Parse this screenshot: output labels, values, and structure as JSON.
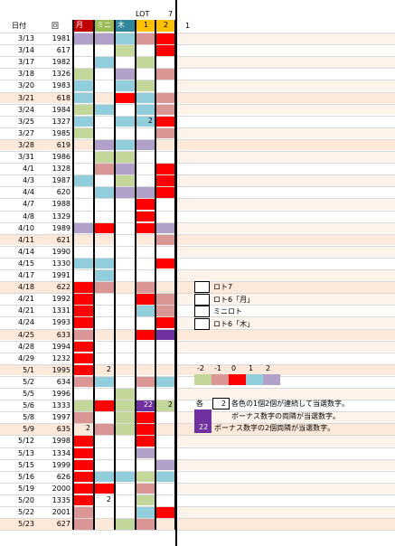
{
  "header": {
    "date_label": "日付",
    "round_label": "回",
    "lot_label": "LOT",
    "seven_label": "7",
    "col_labels": [
      "月",
      "ミニ",
      "木",
      "1",
      "2",
      "1"
    ]
  },
  "colors": {
    "-2": "#c4d79b",
    "-1": "#da9694",
    "0": "#ff0000",
    "1": "#92cddc",
    "2": "#b1a0c7",
    "P": "#7030a0",
    "B": "#fde9d9",
    "E": "#ffffff",
    "hdr_mon": "#c00000",
    "hdr_mini": "#9bbb59",
    "hdr_thu": "#31869b",
    "hdr_1": "#ffc000",
    "hdr_2": "#ffc000"
  },
  "rows": [
    {
      "date": "3/13",
      "round": "1981",
      "cells": [
        "2",
        "2",
        "1",
        "-1",
        "0"
      ],
      "nums": [
        "",
        "",
        "",
        "",
        ""
      ]
    },
    {
      "date": "3/14",
      "round": "617",
      "cells": [
        "E",
        "E",
        "-2",
        "E",
        "0"
      ],
      "nums": [
        "",
        "",
        "",
        "",
        ""
      ]
    },
    {
      "date": "3/17",
      "round": "1982",
      "cells": [
        "E",
        "1",
        "E",
        "-2",
        "E"
      ],
      "nums": [
        "",
        "",
        "",
        "",
        ""
      ]
    },
    {
      "date": "3/18",
      "round": "1326",
      "cells": [
        "-2",
        "E",
        "2",
        "E",
        "-1"
      ],
      "nums": [
        "",
        "",
        "",
        "",
        ""
      ]
    },
    {
      "date": "3/20",
      "round": "1983",
      "cells": [
        "1",
        "E",
        "1",
        "-2",
        "E"
      ],
      "nums": [
        "",
        "",
        "",
        "",
        ""
      ]
    },
    {
      "date": "3/21",
      "round": "618",
      "cells": [
        "1",
        "B",
        "0",
        "1",
        "-1"
      ],
      "nums": [
        "",
        "",
        "",
        "",
        ""
      ]
    },
    {
      "date": "3/24",
      "round": "1984",
      "cells": [
        "-2",
        "1",
        "E",
        "1",
        "-1"
      ],
      "nums": [
        "",
        "",
        "",
        "",
        ""
      ]
    },
    {
      "date": "3/25",
      "round": "1327",
      "cells": [
        "1",
        "E",
        "1",
        "1",
        "0"
      ],
      "nums": [
        "",
        "",
        "",
        "2",
        ""
      ]
    },
    {
      "date": "3/27",
      "round": "1985",
      "cells": [
        "-2",
        "E",
        "E",
        "E",
        "-1"
      ],
      "nums": [
        "",
        "",
        "",
        "",
        ""
      ]
    },
    {
      "date": "3/28",
      "round": "619",
      "cells": [
        "B",
        "2",
        "1",
        "2",
        "B"
      ],
      "nums": [
        "",
        "",
        "",
        "",
        ""
      ]
    },
    {
      "date": "3/31",
      "round": "1986",
      "cells": [
        "E",
        "-2",
        "-2",
        "E",
        "E"
      ],
      "nums": [
        "",
        "",
        "",
        "",
        ""
      ]
    },
    {
      "date": "4/1",
      "round": "1328",
      "cells": [
        "E",
        "-1",
        "2",
        "E",
        "0"
      ],
      "nums": [
        "",
        "",
        "",
        "",
        ""
      ]
    },
    {
      "date": "4/3",
      "round": "1987",
      "cells": [
        "1",
        "E",
        "-2",
        "E",
        "0"
      ],
      "nums": [
        "",
        "",
        "",
        "",
        ""
      ]
    },
    {
      "date": "4/4",
      "round": "620",
      "cells": [
        "E",
        "1",
        "2",
        "2",
        "0"
      ],
      "nums": [
        "",
        "",
        "",
        "",
        ""
      ]
    },
    {
      "date": "4/7",
      "round": "1988",
      "cells": [
        "E",
        "E",
        "E",
        "0",
        "E"
      ],
      "nums": [
        "",
        "",
        "",
        "",
        ""
      ]
    },
    {
      "date": "4/8",
      "round": "1329",
      "cells": [
        "E",
        "E",
        "E",
        "0",
        "E"
      ],
      "nums": [
        "",
        "",
        "",
        "",
        ""
      ]
    },
    {
      "date": "4/10",
      "round": "1989",
      "cells": [
        "2",
        "0",
        "E",
        "0",
        "2"
      ],
      "nums": [
        "",
        "",
        "",
        "",
        ""
      ]
    },
    {
      "date": "4/11",
      "round": "621",
      "cells": [
        "B",
        "B",
        "E",
        "B",
        "-1"
      ],
      "nums": [
        "",
        "",
        "",
        "",
        ""
      ]
    },
    {
      "date": "4/14",
      "round": "1990",
      "cells": [
        "E",
        "E",
        "E",
        "E",
        "E"
      ],
      "nums": [
        "",
        "",
        "",
        "",
        ""
      ]
    },
    {
      "date": "4/15",
      "round": "1330",
      "cells": [
        "1",
        "1",
        "E",
        "E",
        "0"
      ],
      "nums": [
        "",
        "",
        "",
        "",
        ""
      ]
    },
    {
      "date": "4/17",
      "round": "1991",
      "cells": [
        "E",
        "1",
        "E",
        "E",
        "E"
      ],
      "nums": [
        "",
        "",
        "",
        "",
        ""
      ]
    },
    {
      "date": "4/18",
      "round": "622",
      "cells": [
        "0",
        "-1",
        "B",
        "-1",
        "B"
      ],
      "nums": [
        "",
        "",
        "",
        "",
        ""
      ]
    },
    {
      "date": "4/21",
      "round": "1992",
      "cells": [
        "0",
        "E",
        "E",
        "0",
        "-1"
      ],
      "nums": [
        "",
        "",
        "",
        "",
        ""
      ]
    },
    {
      "date": "4/21",
      "round": "1331",
      "cells": [
        "0",
        "E",
        "E",
        "1",
        "-1"
      ],
      "nums": [
        "",
        "",
        "",
        "",
        ""
      ]
    },
    {
      "date": "4/24",
      "round": "1993",
      "cells": [
        "0",
        "E",
        "E",
        "E",
        "0"
      ],
      "nums": [
        "",
        "",
        "",
        "",
        ""
      ]
    },
    {
      "date": "4/25",
      "round": "633",
      "cells": [
        "-1",
        "B",
        "B",
        "0",
        "P"
      ],
      "nums": [
        "",
        "",
        "",
        "",
        ""
      ]
    },
    {
      "date": "4/28",
      "round": "1994",
      "cells": [
        "0",
        "E",
        "E",
        "E",
        "E"
      ],
      "nums": [
        "",
        "",
        "",
        "",
        ""
      ]
    },
    {
      "date": "4/29",
      "round": "1232",
      "cells": [
        "0",
        "E",
        "E",
        "E",
        "E"
      ],
      "nums": [
        "",
        "",
        "",
        "",
        ""
      ]
    },
    {
      "date": "5/1",
      "round": "1995",
      "cells": [
        "0",
        "B",
        "B",
        "B",
        "B"
      ],
      "nums": [
        "",
        "2",
        "",
        "",
        ""
      ]
    },
    {
      "date": "5/2",
      "round": "634",
      "cells": [
        "-1",
        "1",
        "E",
        "-1",
        "1"
      ],
      "nums": [
        "",
        "",
        "",
        "",
        ""
      ]
    },
    {
      "date": "5/5",
      "round": "1996",
      "cells": [
        "E",
        "E",
        "-2",
        "E",
        "E"
      ],
      "nums": [
        "",
        "",
        "",
        "",
        ""
      ]
    },
    {
      "date": "5/6",
      "round": "1333",
      "cells": [
        "-2",
        "0",
        "-2",
        "P",
        "-2"
      ],
      "nums": [
        "",
        "",
        "",
        "22",
        "2"
      ]
    },
    {
      "date": "5/8",
      "round": "1997",
      "cells": [
        "-1",
        "E",
        "-2",
        "0",
        "E"
      ],
      "nums": [
        "",
        "",
        "",
        "",
        ""
      ]
    },
    {
      "date": "5/9",
      "round": "635",
      "cells": [
        "B",
        "-1",
        "-2",
        "0",
        "B"
      ],
      "nums": [
        "2",
        "",
        "",
        "",
        ""
      ]
    },
    {
      "date": "5/12",
      "round": "1998",
      "cells": [
        "0",
        "E",
        "E",
        "0",
        "E"
      ],
      "nums": [
        "",
        "",
        "",
        "",
        ""
      ]
    },
    {
      "date": "5/13",
      "round": "1334",
      "cells": [
        "0",
        "E",
        "E",
        "2",
        "E"
      ],
      "nums": [
        "",
        "",
        "",
        "",
        ""
      ]
    },
    {
      "date": "5/15",
      "round": "1999",
      "cells": [
        "0",
        "E",
        "E",
        "E",
        "2"
      ],
      "nums": [
        "",
        "",
        "",
        "",
        ""
      ]
    },
    {
      "date": "5/16",
      "round": "626",
      "cells": [
        "0",
        "1",
        "1",
        "-2",
        "1"
      ],
      "nums": [
        "",
        "",
        "",
        "",
        ""
      ]
    },
    {
      "date": "5/19",
      "round": "2000",
      "cells": [
        "0",
        "0",
        "E",
        "-1",
        "E"
      ],
      "nums": [
        "",
        "",
        "",
        "",
        ""
      ]
    },
    {
      "date": "5/20",
      "round": "1335",
      "cells": [
        "0",
        "E",
        "E",
        "-2",
        "E"
      ],
      "nums": [
        "",
        "2",
        "",
        "",
        ""
      ]
    },
    {
      "date": "5/22",
      "round": "2001",
      "cells": [
        "-1",
        "E",
        "E",
        "1",
        "0"
      ],
      "nums": [
        "",
        "",
        "",
        "",
        ""
      ]
    },
    {
      "date": "5/23",
      "round": "627",
      "cells": [
        "-1",
        "B",
        "-2",
        "-1",
        "B"
      ],
      "nums": [
        "",
        "",
        "",
        "",
        ""
      ]
    }
  ],
  "legend": {
    "items": [
      "ロト7",
      "ロト6「月」",
      "ミニロト",
      "ロト6「木」"
    ],
    "scale_labels": [
      "-2",
      "-1",
      "0",
      "1",
      "2"
    ],
    "scale_keys": [
      "-2",
      "-1",
      "0",
      "1",
      "2"
    ],
    "note1_prefix": "各",
    "note1_value": "2",
    "note1_text": "各色の1個2個が連続して当選数字。",
    "note2_text": "ボーナス数字の両隣が当選数字。",
    "note3_value": "22",
    "note3_text": "ボーナス数字の2個両隣が当選数字。"
  }
}
